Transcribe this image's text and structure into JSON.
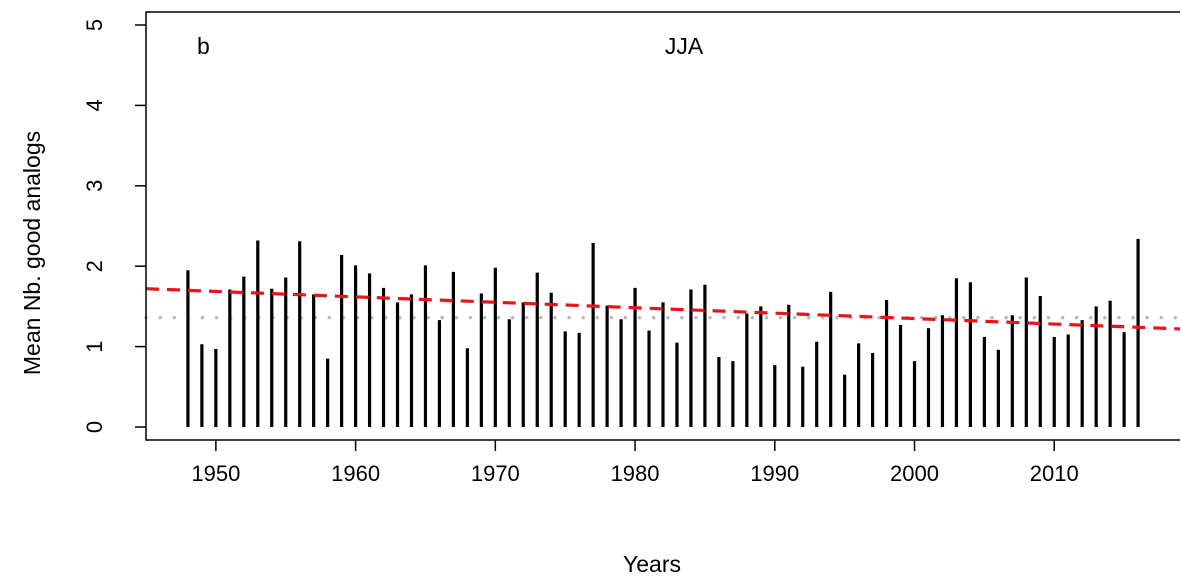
{
  "chart_data": {
    "type": "bar",
    "panel_label": "b",
    "title": "JJA",
    "xlabel": "Years",
    "ylabel": "Mean Nb. good analogs",
    "xlim": [
      1945,
      2019
    ],
    "ylim": [
      0,
      5
    ],
    "x_ticks": [
      1950,
      1960,
      1970,
      1980,
      1990,
      2000,
      2010
    ],
    "y_ticks": [
      0,
      1,
      2,
      3,
      4,
      5
    ],
    "grid": false,
    "x": [
      1948,
      1949,
      1950,
      1951,
      1952,
      1953,
      1954,
      1955,
      1956,
      1957,
      1958,
      1959,
      1960,
      1961,
      1962,
      1963,
      1964,
      1965,
      1966,
      1967,
      1968,
      1969,
      1970,
      1971,
      1972,
      1973,
      1974,
      1975,
      1976,
      1977,
      1978,
      1979,
      1980,
      1981,
      1982,
      1983,
      1984,
      1985,
      1986,
      1987,
      1988,
      1989,
      1990,
      1991,
      1992,
      1993,
      1994,
      1995,
      1996,
      1997,
      1998,
      1999,
      2000,
      2001,
      2002,
      2003,
      2004,
      2005,
      2006,
      2007,
      2008,
      2009,
      2010,
      2011,
      2012,
      2013,
      2014,
      2015,
      2016
    ],
    "values": [
      1.95,
      1.03,
      0.97,
      1.71,
      1.87,
      2.32,
      1.72,
      1.86,
      2.31,
      1.65,
      0.85,
      2.14,
      2.01,
      1.91,
      1.73,
      1.55,
      1.65,
      2.01,
      1.33,
      1.93,
      0.98,
      1.66,
      1.98,
      1.34,
      1.55,
      1.92,
      1.67,
      1.19,
      1.17,
      2.29,
      1.51,
      1.34,
      1.73,
      1.2,
      1.55,
      1.05,
      1.71,
      1.77,
      0.87,
      0.82,
      1.41,
      1.5,
      0.77,
      1.52,
      0.75,
      1.06,
      1.68,
      0.65,
      1.04,
      0.92,
      1.58,
      1.27,
      0.82,
      1.23,
      1.39,
      1.85,
      1.8,
      1.12,
      0.96,
      1.39,
      1.86,
      1.63,
      1.12,
      1.15,
      1.33,
      1.5,
      1.57,
      1.18,
      2.34
    ],
    "mean_line": {
      "value": 1.36,
      "color": "#bbbbbb",
      "style": "dotted"
    },
    "trend_line": {
      "x": [
        1945,
        2019
      ],
      "y": [
        1.72,
        1.22
      ],
      "color": "#e8141a",
      "style": "dashed"
    },
    "bar_color": "#000000"
  }
}
